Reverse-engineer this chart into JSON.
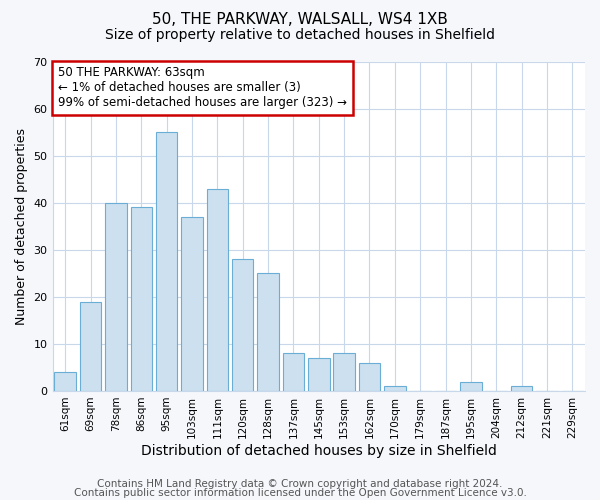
{
  "title": "50, THE PARKWAY, WALSALL, WS4 1XB",
  "subtitle": "Size of property relative to detached houses in Shelfield",
  "xlabel": "Distribution of detached houses by size in Shelfield",
  "ylabel": "Number of detached properties",
  "bar_labels": [
    "61sqm",
    "69sqm",
    "78sqm",
    "86sqm",
    "95sqm",
    "103sqm",
    "111sqm",
    "120sqm",
    "128sqm",
    "137sqm",
    "145sqm",
    "153sqm",
    "162sqm",
    "170sqm",
    "179sqm",
    "187sqm",
    "195sqm",
    "204sqm",
    "212sqm",
    "221sqm",
    "229sqm"
  ],
  "bar_values": [
    4,
    19,
    40,
    39,
    55,
    37,
    43,
    28,
    25,
    8,
    7,
    8,
    6,
    1,
    0,
    0,
    2,
    0,
    1,
    0,
    0
  ],
  "bar_color": "#cce0f0",
  "bar_edge_color": "#6aaed6",
  "annotation_box_text": "50 THE PARKWAY: 63sqm\n← 1% of detached houses are smaller (3)\n99% of semi-detached houses are larger (323) →",
  "annotation_box_edge_color": "#cc0000",
  "annotation_box_facecolor": "#ffffff",
  "ylim": [
    0,
    70
  ],
  "yticks": [
    0,
    10,
    20,
    30,
    40,
    50,
    60,
    70
  ],
  "footer_line1": "Contains HM Land Registry data © Crown copyright and database right 2024.",
  "footer_line2": "Contains public sector information licensed under the Open Government Licence v3.0.",
  "plot_bg_color": "#ffffff",
  "fig_bg_color": "#f5f7fb",
  "grid_color": "#c8d8ea",
  "title_fontsize": 11,
  "subtitle_fontsize": 10,
  "xlabel_fontsize": 10,
  "ylabel_fontsize": 9,
  "footer_fontsize": 7.5,
  "annotation_fontsize": 8.5
}
